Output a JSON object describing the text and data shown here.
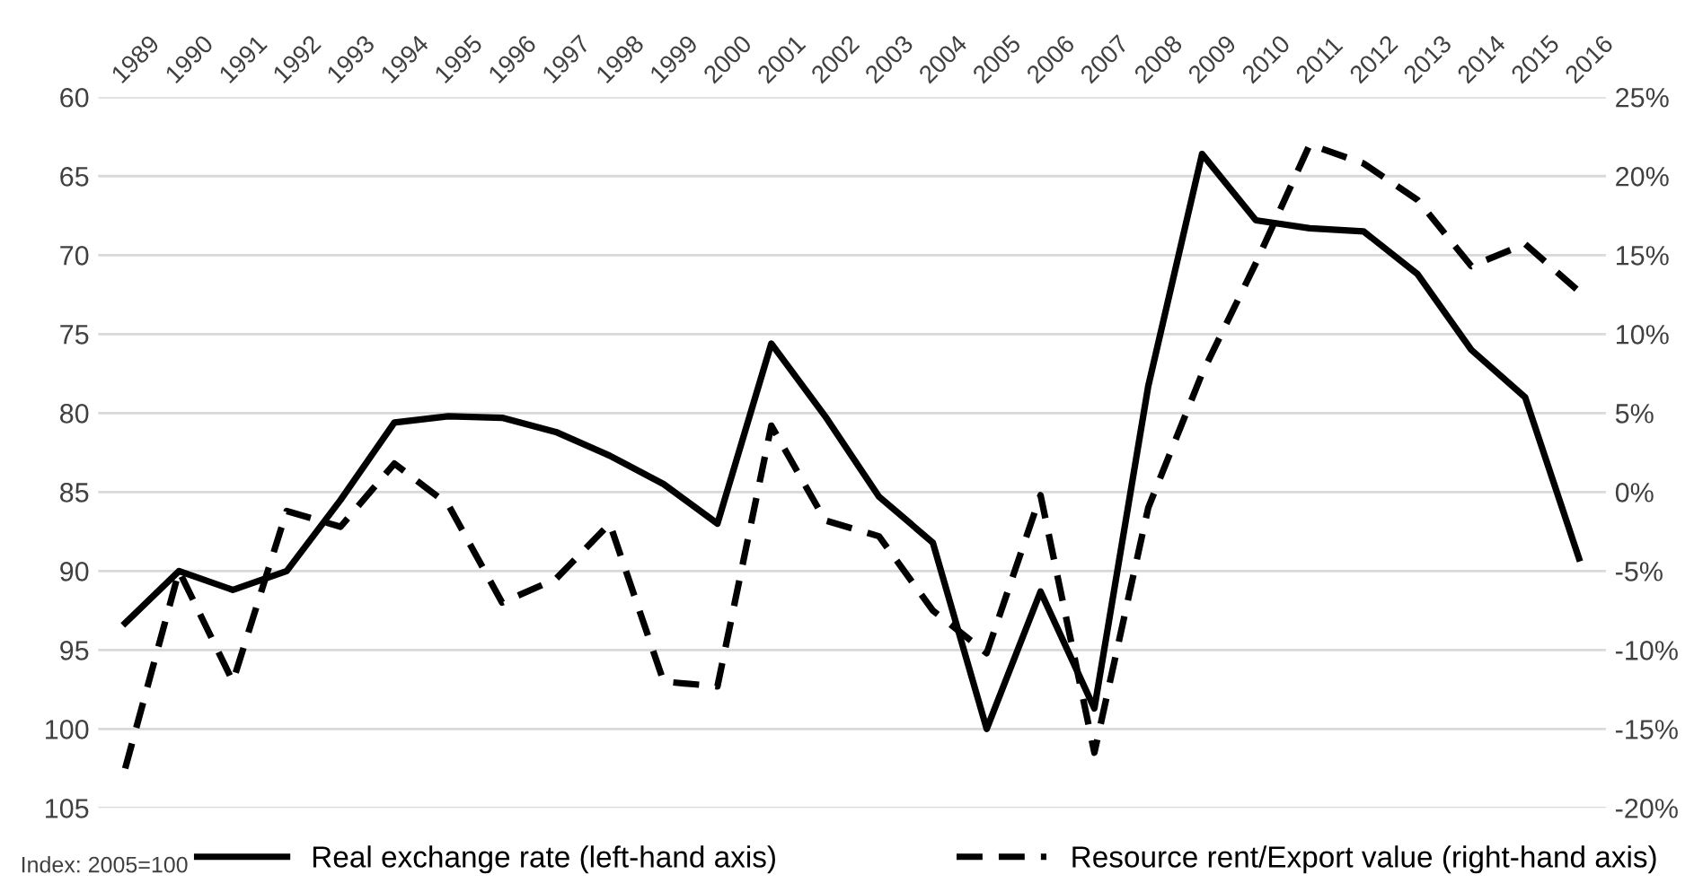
{
  "chart_data": {
    "type": "line",
    "categories": [
      "1989",
      "1990",
      "1991",
      "1992",
      "1993",
      "1994",
      "1995",
      "1996",
      "1997",
      "1998",
      "1999",
      "2000",
      "2001",
      "2002",
      "2003",
      "2004",
      "2005",
      "2006",
      "2007",
      "2008",
      "2009",
      "2010",
      "2011",
      "2012",
      "2013",
      "2014",
      "2015",
      "2016"
    ],
    "series": [
      {
        "name": "Real exchange rate (left-hand axis)",
        "color": "#000000",
        "line_style": "solid",
        "values": [
          93.3,
          90,
          91.2,
          90,
          85.5,
          80.6,
          80.2,
          80.3,
          81.2,
          82.7,
          84.5,
          87,
          75.6,
          80.2,
          85.3,
          88.2,
          100,
          91.3,
          98.7,
          78.3,
          63.6,
          67.8,
          68.3,
          68.5,
          71.2,
          76,
          79,
          89.2
        ]
      },
      {
        "name": "Resource rent/Export value (right-hand axis)",
        "color": "#000000",
        "line_style": "dashed",
        "axis": "y2",
        "values": [
          -17.5,
          -5,
          -12,
          -1.2,
          -2.2,
          1.8,
          -0.8,
          -7,
          -5.5,
          -2,
          -12,
          -12.3,
          4.2,
          -1.8,
          -2.8,
          -7.5,
          -10.2,
          -0.2,
          -16.5,
          -1,
          7.5,
          14.5,
          22,
          20.8,
          18.5,
          14.3,
          15.7,
          12.7
        ]
      }
    ],
    "ylim": [
      105,
      60
    ],
    "yticks": [
      60,
      65,
      70,
      75,
      80,
      85,
      90,
      95,
      100,
      105
    ],
    "y2lim": [
      -20,
      25
    ],
    "y2ticks": [
      {
        "value": 25,
        "label": "25%"
      },
      {
        "value": 20,
        "label": "20%"
      },
      {
        "value": 15,
        "label": "15%"
      },
      {
        "value": 10,
        "label": "10%"
      },
      {
        "value": 5,
        "label": "5%"
      },
      {
        "value": 0,
        "label": "0%"
      },
      {
        "value": -5,
        "label": "-5%"
      },
      {
        "value": -10,
        "label": "-10%"
      },
      {
        "value": -15,
        "label": "-15%"
      },
      {
        "value": -20,
        "label": "-20%"
      }
    ],
    "grid": "y",
    "legend": "bottom",
    "marker": "none",
    "annotations": [
      "Index: 2005=100"
    ]
  }
}
